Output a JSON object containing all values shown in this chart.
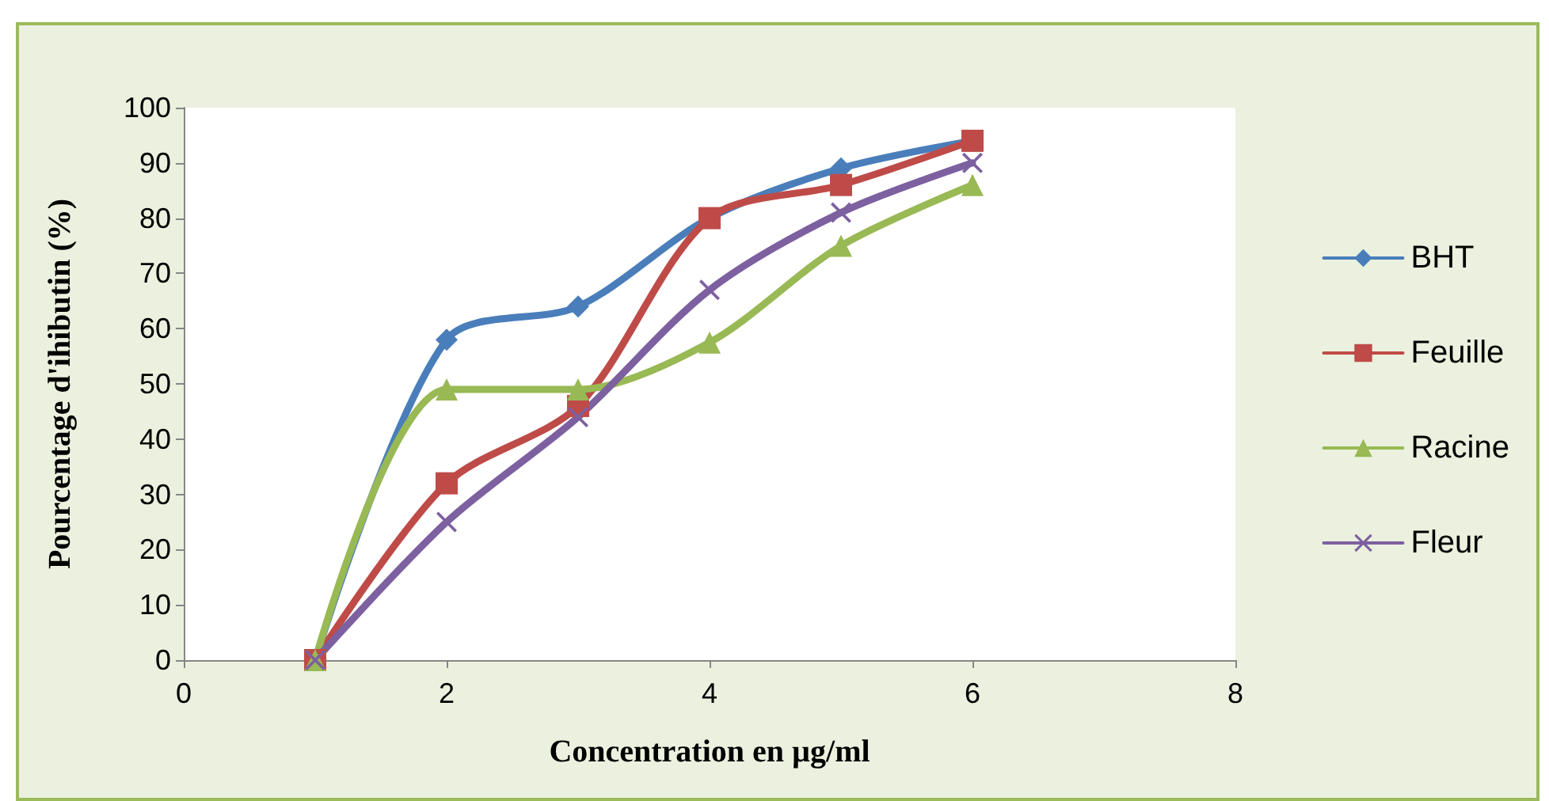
{
  "chart_data": {
    "type": "line",
    "xlabel": "Concentration en µg/ml",
    "ylabel": "Pourcentage d'ihibutin (%)",
    "xlim": [
      0,
      8
    ],
    "xticks": [
      0,
      2,
      4,
      6,
      8
    ],
    "ylim": [
      0,
      100
    ],
    "yticks": [
      0,
      10,
      20,
      30,
      40,
      50,
      60,
      70,
      80,
      90,
      100
    ],
    "x": [
      1,
      2,
      3,
      4,
      5,
      6
    ],
    "grid": false,
    "legend": "right",
    "series": [
      {
        "name": "BHT",
        "color": "#4a7ebb",
        "marker": "diamond",
        "values": [
          0,
          58,
          64,
          80,
          89,
          94
        ]
      },
      {
        "name": "Feuille",
        "color": "#be4b48",
        "marker": "square",
        "values": [
          0,
          32,
          46,
          80,
          86,
          94
        ]
      },
      {
        "name": "Racine",
        "color": "#98b954",
        "marker": "triangle",
        "values": [
          0,
          49,
          49,
          57.5,
          75,
          86
        ]
      },
      {
        "name": "Fleur",
        "color": "#7d60a0",
        "marker": "cross",
        "values": [
          0,
          25,
          44,
          67,
          81,
          90
        ]
      }
    ]
  }
}
